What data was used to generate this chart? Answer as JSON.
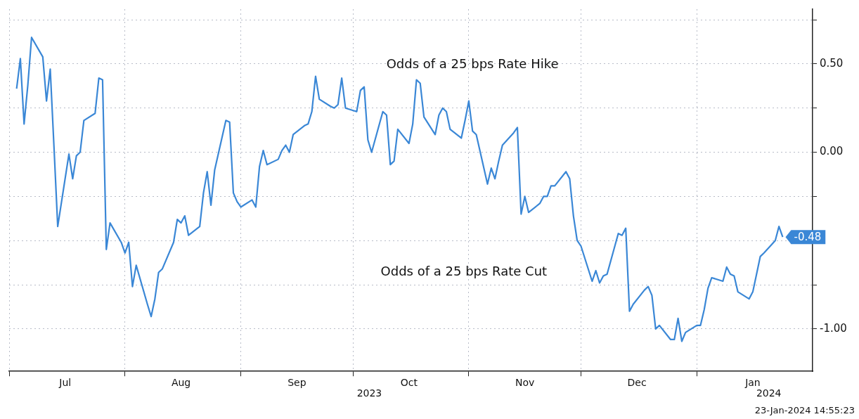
{
  "chart_data": {
    "type": "line",
    "marker": "none",
    "grid": true,
    "xlim": [
      "2023-07-01",
      "2024-02-01"
    ],
    "xticks": [
      {
        "value": "2023-07-01",
        "label": null
      },
      {
        "value": "2023-07-16",
        "label": "Jul"
      },
      {
        "value": "2023-08-01",
        "label": null
      },
      {
        "value": "2023-08-16",
        "label": "Aug"
      },
      {
        "value": "2023-09-01",
        "label": null
      },
      {
        "value": "2023-09-16",
        "label": "Sep"
      },
      {
        "value": "2023-10-01",
        "label": null
      },
      {
        "value": "2023-10-16",
        "label": "Oct"
      },
      {
        "value": "2023-11-01",
        "label": null
      },
      {
        "value": "2023-11-16",
        "label": "Nov"
      },
      {
        "value": "2023-12-01",
        "label": null
      },
      {
        "value": "2023-12-16",
        "label": "Dec"
      },
      {
        "value": "2024-01-01",
        "label": null
      },
      {
        "value": "2024-01-16",
        "label": "Jan"
      }
    ],
    "ylim": [
      -1.24,
      0.81
    ],
    "yticks": [
      {
        "value": 0.75,
        "label": null
      },
      {
        "value": 0.5,
        "label": "0.50"
      },
      {
        "value": 0.25,
        "label": null
      },
      {
        "value": 0,
        "label": "0.00"
      },
      {
        "value": -0.25,
        "label": null
      },
      {
        "value": -0.5,
        "label": null
      },
      {
        "value": -0.75,
        "label": null
      },
      {
        "value": -1,
        "label": "-1.00"
      }
    ],
    "annotations": [
      "Odds of a 25 bps Rate Hike",
      "Odds of a 25 bps Rate Cut",
      "2023",
      "2024",
      "23-Jan-2024 14:55:23"
    ],
    "series": [
      {
        "color": "#3a87d6",
        "x": [
          "2023-07-03",
          "2023-07-04",
          "2023-07-05",
          "2023-07-06",
          "2023-07-07",
          "2023-07-10",
          "2023-07-11",
          "2023-07-12",
          "2023-07-13",
          "2023-07-14",
          "2023-07-17",
          "2023-07-18",
          "2023-07-19",
          "2023-07-20",
          "2023-07-21",
          "2023-07-24",
          "2023-07-25",
          "2023-07-26",
          "2023-07-27",
          "2023-07-28",
          "2023-07-31",
          "2023-08-01",
          "2023-08-02",
          "2023-08-03",
          "2023-08-04",
          "2023-08-07",
          "2023-08-08",
          "2023-08-09",
          "2023-08-10",
          "2023-08-11",
          "2023-08-14",
          "2023-08-15",
          "2023-08-16",
          "2023-08-17",
          "2023-08-18",
          "2023-08-21",
          "2023-08-22",
          "2023-08-23",
          "2023-08-24",
          "2023-08-25",
          "2023-08-28",
          "2023-08-29",
          "2023-08-30",
          "2023-08-31",
          "2023-09-01",
          "2023-09-04",
          "2023-09-05",
          "2023-09-06",
          "2023-09-07",
          "2023-09-08",
          "2023-09-11",
          "2023-09-12",
          "2023-09-13",
          "2023-09-14",
          "2023-09-15",
          "2023-09-18",
          "2023-09-19",
          "2023-09-20",
          "2023-09-21",
          "2023-09-22",
          "2023-09-25",
          "2023-09-26",
          "2023-09-27",
          "2023-09-28",
          "2023-09-29",
          "2023-10-02",
          "2023-10-03",
          "2023-10-04",
          "2023-10-05",
          "2023-10-06",
          "2023-10-09",
          "2023-10-10",
          "2023-10-11",
          "2023-10-12",
          "2023-10-13",
          "2023-10-16",
          "2023-10-17",
          "2023-10-18",
          "2023-10-19",
          "2023-10-20",
          "2023-10-23",
          "2023-10-24",
          "2023-10-25",
          "2023-10-26",
          "2023-10-27",
          "2023-10-30",
          "2023-10-31",
          "2023-11-01",
          "2023-11-02",
          "2023-11-03",
          "2023-11-06",
          "2023-11-07",
          "2023-11-08",
          "2023-11-09",
          "2023-11-10",
          "2023-11-13",
          "2023-11-14",
          "2023-11-15",
          "2023-11-16",
          "2023-11-17",
          "2023-11-20",
          "2023-11-21",
          "2023-11-22",
          "2023-11-23",
          "2023-11-24",
          "2023-11-27",
          "2023-11-28",
          "2023-11-29",
          "2023-11-30",
          "2023-12-01",
          "2023-12-04",
          "2023-12-05",
          "2023-12-06",
          "2023-12-07",
          "2023-12-08",
          "2023-12-11",
          "2023-12-12",
          "2023-12-13",
          "2023-12-14",
          "2023-12-15",
          "2023-12-18",
          "2023-12-19",
          "2023-12-20",
          "2023-12-21",
          "2023-12-22",
          "2023-12-25",
          "2023-12-26",
          "2023-12-27",
          "2023-12-28",
          "2023-12-29",
          "2024-01-01",
          "2024-01-02",
          "2024-01-03",
          "2024-01-04",
          "2024-01-05",
          "2024-01-08",
          "2024-01-09",
          "2024-01-10",
          "2024-01-11",
          "2024-01-12",
          "2024-01-15",
          "2024-01-16",
          "2024-01-17",
          "2024-01-18",
          "2024-01-19",
          "2024-01-22",
          "2024-01-23",
          "2024-01-24"
        ],
        "values": [
          0.36,
          0.53,
          0.16,
          0.38,
          0.65,
          0.54,
          0.29,
          0.47,
          0.03,
          -0.42,
          -0.01,
          -0.15,
          -0.02,
          0.0,
          0.18,
          0.22,
          0.42,
          0.41,
          -0.55,
          -0.4,
          -0.51,
          -0.57,
          -0.51,
          -0.76,
          -0.64,
          -0.86,
          -0.93,
          -0.83,
          -0.68,
          -0.66,
          -0.51,
          -0.38,
          -0.4,
          -0.36,
          -0.47,
          -0.42,
          -0.23,
          -0.11,
          -0.3,
          -0.1,
          0.18,
          0.17,
          -0.23,
          -0.28,
          -0.31,
          -0.27,
          -0.31,
          -0.08,
          0.01,
          -0.07,
          -0.04,
          0.01,
          0.04,
          0.0,
          0.1,
          0.15,
          0.16,
          0.23,
          0.43,
          0.3,
          0.26,
          0.25,
          0.27,
          0.42,
          0.25,
          0.23,
          0.35,
          0.37,
          0.07,
          0.0,
          0.23,
          0.21,
          -0.07,
          -0.05,
          0.13,
          0.05,
          0.16,
          0.41,
          0.39,
          0.2,
          0.1,
          0.21,
          0.25,
          0.23,
          0.13,
          0.08,
          0.18,
          0.29,
          0.12,
          0.1,
          -0.18,
          -0.09,
          -0.15,
          -0.05,
          0.04,
          0.11,
          0.14,
          -0.35,
          -0.25,
          -0.34,
          -0.29,
          -0.25,
          -0.25,
          -0.19,
          -0.19,
          -0.11,
          -0.15,
          -0.36,
          -0.5,
          -0.53,
          -0.73,
          -0.67,
          -0.74,
          -0.7,
          -0.69,
          -0.46,
          -0.47,
          -0.43,
          -0.9,
          -0.86,
          -0.78,
          -0.76,
          -0.81,
          -1.0,
          -0.98,
          -1.06,
          -1.06,
          -0.94,
          -1.07,
          -1.02,
          -0.98,
          -0.98,
          -0.89,
          -0.77,
          -0.71,
          -0.73,
          -0.65,
          -0.69,
          -0.7,
          -0.79,
          -0.83,
          -0.79,
          -0.69,
          -0.59,
          -0.57,
          -0.5,
          -0.42,
          -0.48
        ],
        "value_labels": [
          null,
          null,
          null,
          null,
          null,
          null,
          null,
          null,
          null,
          null,
          null,
          null,
          null,
          null,
          null,
          null,
          null,
          null,
          null,
          null,
          null,
          null,
          null,
          null,
          null,
          null,
          null,
          null,
          null,
          null,
          null,
          null,
          null,
          null,
          null,
          null,
          null,
          null,
          null,
          null,
          null,
          null,
          null,
          null,
          null,
          null,
          null,
          null,
          null,
          null,
          null,
          null,
          null,
          null,
          null,
          null,
          null,
          null,
          null,
          null,
          null,
          null,
          null,
          null,
          null,
          null,
          null,
          null,
          null,
          null,
          null,
          null,
          null,
          null,
          null,
          null,
          null,
          null,
          null,
          null,
          null,
          null,
          null,
          null,
          null,
          null,
          null,
          null,
          null,
          null,
          null,
          null,
          null,
          null,
          null,
          null,
          null,
          null,
          null,
          null,
          null,
          null,
          null,
          null,
          null,
          null,
          null,
          null,
          null,
          null,
          null,
          null,
          null,
          null,
          null,
          null,
          null,
          null,
          null,
          null,
          null,
          null,
          null,
          null,
          null,
          null,
          null,
          null,
          null,
          null,
          null,
          null,
          null,
          null,
          null,
          null,
          null,
          null,
          null,
          null,
          null,
          null,
          null,
          null,
          null,
          null,
          null,
          "-0.48"
        ]
      }
    ]
  }
}
